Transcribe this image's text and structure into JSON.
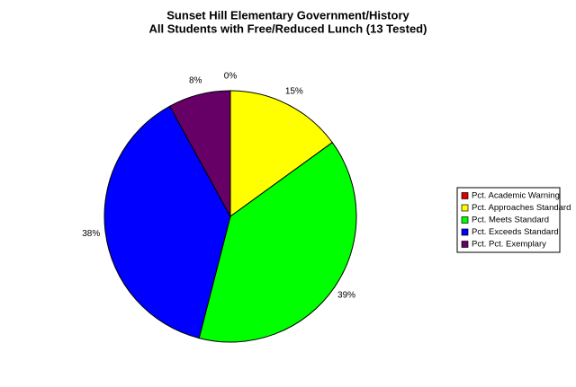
{
  "chart_data": {
    "type": "pie",
    "title": "Sunset Hill Elementary Government/History",
    "subtitle": "All Students with Free/Reduced Lunch (13 Tested)",
    "categories": [
      "Pct. Academic Warning",
      "Pct. Approaches Standard",
      "Pct. Meets Standard",
      "Pct. Exceeds Standard",
      "Pct. Pct. Exemplary"
    ],
    "values": [
      0,
      15,
      39,
      38,
      8
    ],
    "value_labels": [
      "0%",
      "15%",
      "39%",
      "38%",
      "8%"
    ],
    "colors": [
      "#dd0000",
      "#ffff00",
      "#00ff00",
      "#0000ff",
      "#660066"
    ],
    "legend": "right"
  }
}
